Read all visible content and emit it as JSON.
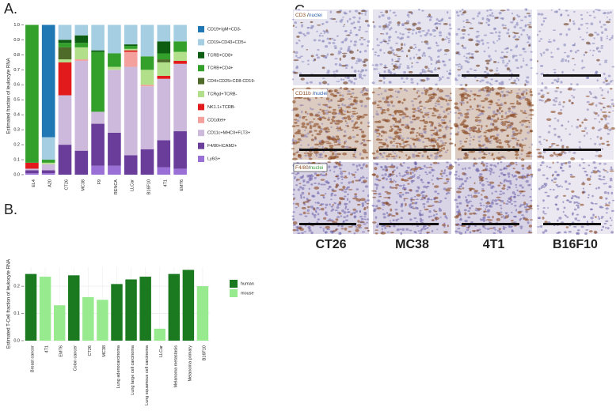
{
  "chart_data": [
    {
      "type": "stacked_bar",
      "panel_label": "A.",
      "ylabel": "Estimated fraction of leukocyte RNA",
      "categories": [
        "EL4",
        "A20",
        "CT26",
        "MC38",
        "F9",
        "RENCA",
        "LLCar",
        "B16F10",
        "4T1",
        "EMT6"
      ],
      "series": [
        {
          "name": "CD19+IgM+CD3-",
          "color": "#1f78b4",
          "values": [
            0,
            0.75,
            0,
            0,
            0,
            0,
            0,
            0,
            0,
            0
          ]
        },
        {
          "name": "CD19+CD43+CD5+",
          "color": "#a6cee3",
          "values": [
            0,
            0.15,
            0.1,
            0.07,
            0.17,
            0.19,
            0.13,
            0.21,
            0.11,
            0.11
          ]
        },
        {
          "name": "TCRB+CD8+",
          "color": "#0d5e12",
          "values": [
            0,
            0,
            0.02,
            0.05,
            0.01,
            0,
            0.01,
            0,
            0.08,
            0
          ]
        },
        {
          "name": "TCRB+CD4+",
          "color": "#33a02c",
          "values": [
            0.92,
            0.02,
            0.03,
            0.03,
            0.4,
            0.09,
            0.02,
            0.09,
            0.04,
            0.07
          ]
        },
        {
          "name": "CD4+CD25+CD8-CD19-",
          "color": "#4f6b2a",
          "values": [
            0,
            0,
            0.08,
            0,
            0,
            0,
            0,
            0,
            0.02,
            0
          ]
        },
        {
          "name": "TCRgd+TCRB-",
          "color": "#b2df8a",
          "values": [
            0,
            0.01,
            0.02,
            0.08,
            0,
            0.02,
            0.01,
            0.1,
            0.09,
            0.06
          ]
        },
        {
          "name": "NK1.1+TCRB-",
          "color": "#e31a1c",
          "values": [
            0.04,
            0,
            0.22,
            0,
            0,
            0,
            0.01,
            0,
            0.02,
            0.02
          ]
        },
        {
          "name": "CD1dtet+",
          "color": "#f4a09c",
          "values": [
            0,
            0,
            0,
            0.01,
            0,
            0,
            0.1,
            0.01,
            0,
            0
          ]
        },
        {
          "name": "CD11c+MHCII+FLT3+",
          "color": "#cdb9dc",
          "values": [
            0.01,
            0.04,
            0.33,
            0.6,
            0.08,
            0.42,
            0.59,
            0.42,
            0.41,
            0.45
          ]
        },
        {
          "name": "F4/80+ICAM2+",
          "color": "#6a3d9a",
          "values": [
            0.02,
            0.02,
            0.2,
            0.16,
            0.28,
            0.22,
            0.13,
            0.17,
            0.18,
            0.25
          ]
        },
        {
          "name": "Ly6G+",
          "color": "#9a70d6",
          "values": [
            0.01,
            0.01,
            0,
            0,
            0.06,
            0.06,
            0,
            0,
            0.05,
            0.04
          ]
        }
      ],
      "ylim": [
        0,
        1.05
      ],
      "yticks": [
        {
          "value": 0,
          "label": "0.0"
        },
        0.1,
        0.2,
        0.3,
        0.4,
        0.5,
        0.6,
        0.7,
        0.8,
        0.9,
        {
          "value": 1,
          "label": "1.0"
        }
      ],
      "grid": false
    },
    {
      "type": "bar",
      "panel_label": "B.",
      "ylabel": "Estimated T-Cell fraction of leukocyte RNA",
      "categories": [
        "Breast cancer",
        "4T1",
        "EMT6",
        "Colon cancer",
        "CT26",
        "MC38",
        "Lung adenocarcinoma",
        "Lung large cell carcinoma",
        "Lung squamous cell carcinoma",
        "LLCar",
        "Melanoma metastasis",
        "Melanoma primary",
        "B16F10"
      ],
      "series": [
        {
          "name": "human",
          "color": "#1b7a1f",
          "values": [
            0.245,
            null,
            null,
            0.24,
            null,
            null,
            0.208,
            0.225,
            0.235,
            null,
            0.245,
            0.26,
            null
          ]
        },
        {
          "name": "mouse",
          "color": "#98ea8e",
          "values": [
            null,
            0.235,
            0.13,
            null,
            0.16,
            0.15,
            null,
            null,
            null,
            0.044,
            null,
            null,
            0.2
          ]
        }
      ],
      "ylim": [
        0,
        0.27
      ],
      "yticks": [
        {
          "value": 0,
          "label": "0.0"
        },
        0.1,
        0.2
      ],
      "grid": true
    }
  ],
  "panel_c": {
    "panel_label": "C.",
    "stains": [
      {
        "marker": "CD3",
        "sep": "/",
        "counter": "nuclei"
      },
      {
        "marker": "CD11b",
        "sep": "/",
        "counter": "nuclei"
      },
      {
        "marker": "F4/80",
        "sep": "/",
        "counter": "nuclei"
      }
    ],
    "samples": [
      "CT26",
      "MC38",
      "4T1",
      "B16F10"
    ]
  }
}
